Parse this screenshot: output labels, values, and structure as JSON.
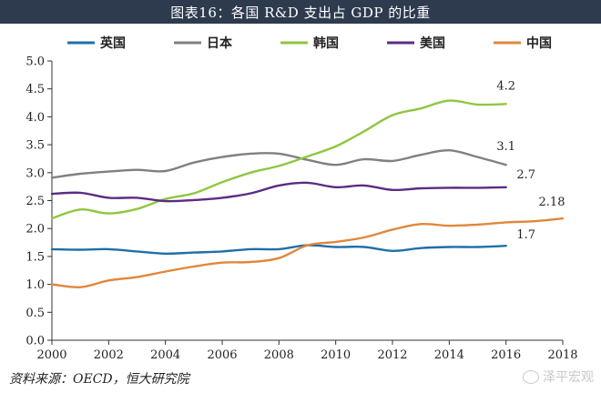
{
  "header": {
    "title": "图表16：各国 R&D 支出占 GDP 的比重"
  },
  "footer": {
    "source": "资料来源：OECD，恒大研究院",
    "watermark": "泽平宏观"
  },
  "chart_data": {
    "type": "line",
    "title": "图表16：各国 R&D 支出占 GDP 的比重",
    "xlabel": "",
    "ylabel": "",
    "xlim": [
      2000,
      2018
    ],
    "ylim": [
      0.0,
      5.0
    ],
    "x_ticks": [
      "2000",
      "2002",
      "2004",
      "2006",
      "2008",
      "2010",
      "2012",
      "2014",
      "2016",
      "2018"
    ],
    "y_ticks": [
      "0.0",
      "0.5",
      "1.0",
      "1.5",
      "2.0",
      "2.5",
      "3.0",
      "3.5",
      "4.0",
      "4.5",
      "5.0"
    ],
    "grid": false,
    "legend_position": "top",
    "series": [
      {
        "name": "英国",
        "color": "#1f6fa8",
        "x": [
          2000,
          2001,
          2002,
          2003,
          2004,
          2005,
          2006,
          2007,
          2008,
          2009,
          2010,
          2011,
          2012,
          2013,
          2014,
          2015,
          2016
        ],
        "values": [
          1.63,
          1.62,
          1.63,
          1.59,
          1.55,
          1.57,
          1.59,
          1.63,
          1.63,
          1.7,
          1.67,
          1.67,
          1.6,
          1.65,
          1.67,
          1.67,
          1.69
        ],
        "end_label": "1.7"
      },
      {
        "name": "日本",
        "color": "#808080",
        "x": [
          2000,
          2001,
          2002,
          2003,
          2004,
          2005,
          2006,
          2007,
          2008,
          2009,
          2010,
          2011,
          2012,
          2013,
          2014,
          2015,
          2016
        ],
        "values": [
          2.91,
          2.98,
          3.02,
          3.05,
          3.03,
          3.18,
          3.28,
          3.34,
          3.34,
          3.23,
          3.14,
          3.24,
          3.21,
          3.32,
          3.4,
          3.28,
          3.14
        ],
        "end_label": "3.1"
      },
      {
        "name": "韩国",
        "color": "#8fc640",
        "x": [
          2000,
          2001,
          2002,
          2003,
          2004,
          2005,
          2006,
          2007,
          2008,
          2009,
          2010,
          2011,
          2012,
          2013,
          2014,
          2015,
          2016
        ],
        "values": [
          2.18,
          2.34,
          2.27,
          2.35,
          2.53,
          2.63,
          2.83,
          3.0,
          3.12,
          3.29,
          3.47,
          3.74,
          4.03,
          4.15,
          4.29,
          4.22,
          4.23
        ],
        "end_label": "4.2"
      },
      {
        "name": "美国",
        "color": "#5b2c83",
        "x": [
          2000,
          2001,
          2002,
          2003,
          2004,
          2005,
          2006,
          2007,
          2008,
          2009,
          2010,
          2011,
          2012,
          2013,
          2014,
          2015,
          2016
        ],
        "values": [
          2.62,
          2.64,
          2.55,
          2.55,
          2.49,
          2.51,
          2.55,
          2.63,
          2.77,
          2.82,
          2.74,
          2.77,
          2.69,
          2.72,
          2.73,
          2.73,
          2.74
        ],
        "end_label": "2.7"
      },
      {
        "name": "中国",
        "color": "#e0873b",
        "x": [
          2000,
          2001,
          2002,
          2003,
          2004,
          2005,
          2006,
          2007,
          2008,
          2009,
          2010,
          2011,
          2012,
          2013,
          2014,
          2015,
          2016,
          2017,
          2018
        ],
        "values": [
          1.0,
          0.95,
          1.07,
          1.13,
          1.23,
          1.32,
          1.39,
          1.4,
          1.47,
          1.7,
          1.76,
          1.84,
          1.98,
          2.08,
          2.05,
          2.07,
          2.11,
          2.13,
          2.18
        ],
        "end_label": "2.18"
      }
    ]
  }
}
